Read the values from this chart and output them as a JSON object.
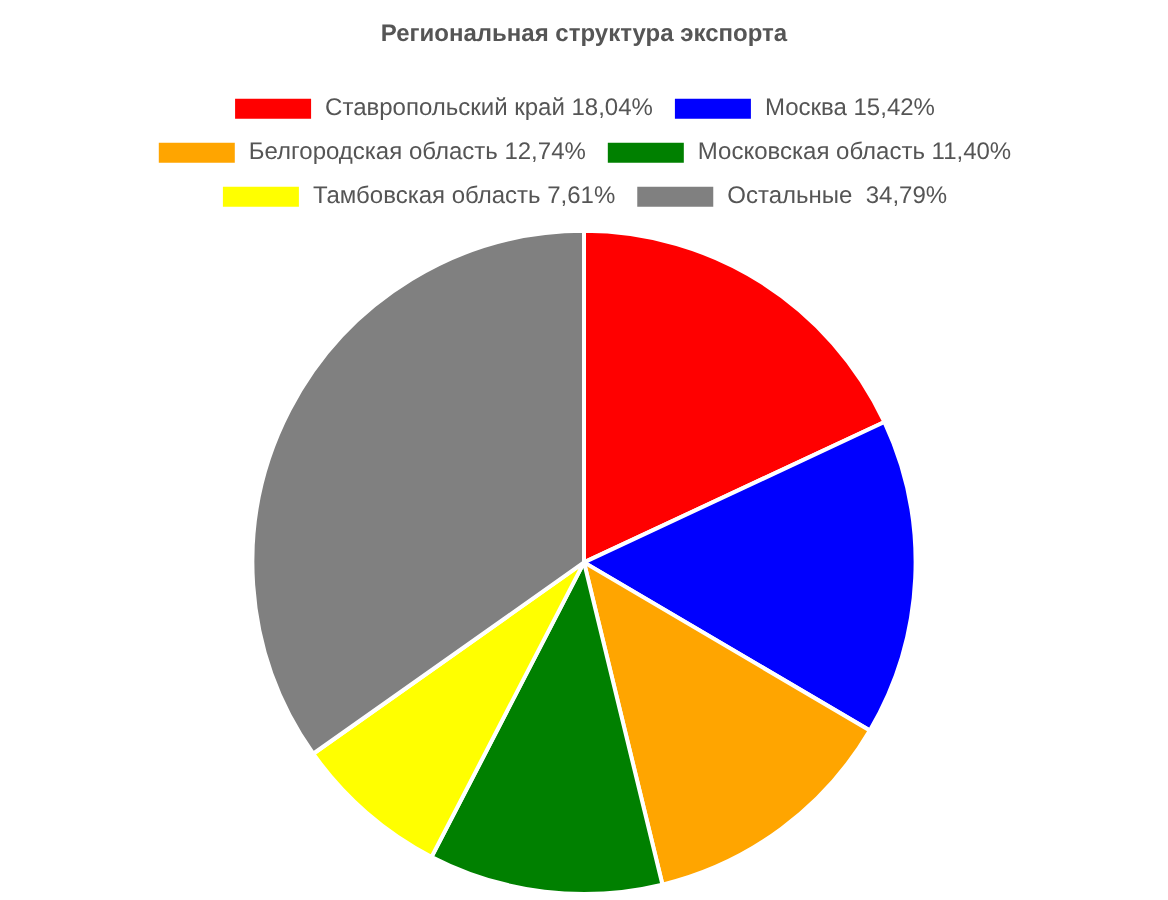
{
  "chart_data": {
    "type": "pie",
    "title": "Региональная структура экспорта",
    "categories": [
      "Ставропольский край 18,04%",
      "Москва 15,42%",
      "Белгородская область 12,74%",
      "Московская область 11,40%",
      "Тамбовская область 7,61%",
      "Остальные  34,79%"
    ],
    "values": [
      18.04,
      15.42,
      12.74,
      11.4,
      7.61,
      34.79
    ],
    "colors": [
      "#ff0000",
      "#0000ff",
      "#ffa500",
      "#008000",
      "#ffff00",
      "#808080"
    ],
    "legend": "top"
  }
}
